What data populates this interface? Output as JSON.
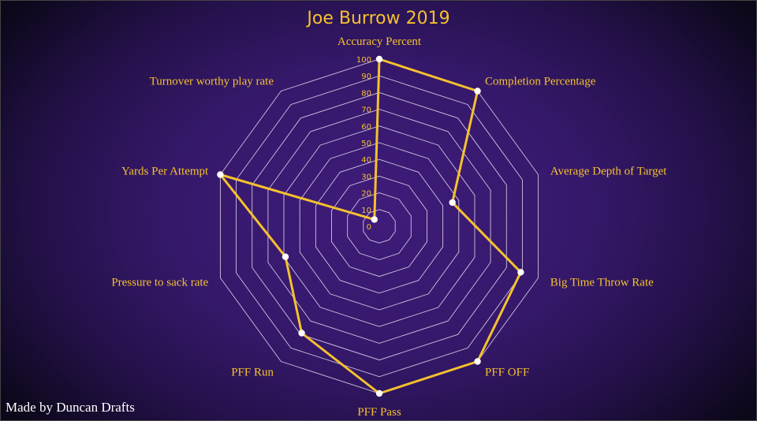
{
  "credit": "Made by Duncan Drafts",
  "chart_data": {
    "type": "radar",
    "title": "Joe Burrow 2019",
    "axes": [
      "Accuracy Percent",
      "Completion Percentage",
      "Average Depth of Target",
      "Big Time Throw Rate",
      "PFF OFF",
      "PFF Pass",
      "PFF Run",
      "Pressure to sack rate",
      "Yards Per Attempt",
      "Turnover worthy play rate"
    ],
    "ticks": [
      0,
      10,
      20,
      30,
      40,
      50,
      60,
      70,
      80,
      90,
      100
    ],
    "range": [
      0,
      100
    ],
    "series": [
      {
        "values": [
          100,
          100,
          46,
          89,
          100,
          100,
          79,
          59,
          100,
          5
        ]
      }
    ],
    "colors": {
      "series": "#f5c12e",
      "points": "#ffffff",
      "grid": "#e8e0f4",
      "text": "#f5c12e"
    },
    "grid": true
  }
}
